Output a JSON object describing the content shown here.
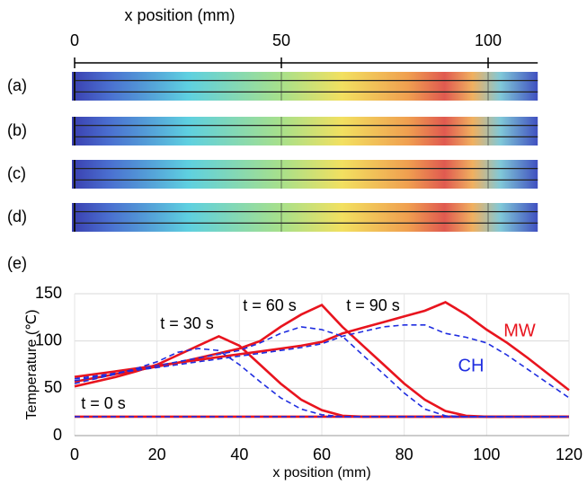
{
  "chart_data": [
    {
      "type": "strips",
      "xlabel": "x position (mm)",
      "xlim": [
        0,
        112
      ],
      "xticks": [
        0,
        50,
        100
      ],
      "panels": [
        "(a)",
        "(b)",
        "(c)",
        "(d)"
      ]
    },
    {
      "type": "line",
      "panel": "(e)",
      "xlabel": "x position  (mm)",
      "ylabel": "Temperature (℃)",
      "xlim": [
        0,
        120
      ],
      "xticks": [
        0,
        20,
        40,
        60,
        80,
        100,
        120
      ],
      "ylim": [
        0,
        150
      ],
      "yticks": [
        0,
        50,
        100,
        150
      ],
      "grid": true,
      "times": [
        "t = 0 s",
        "t = 30 s",
        "t = 60 s",
        "t = 90 s"
      ],
      "x": [
        0,
        5,
        10,
        15,
        20,
        25,
        30,
        35,
        40,
        45,
        50,
        55,
        60,
        65,
        70,
        75,
        80,
        85,
        90,
        95,
        100,
        105,
        110,
        115,
        120
      ],
      "series": [
        {
          "name": "MW",
          "color": "#e8141e",
          "dashed": false,
          "curves": [
            [
              20,
              20,
              20,
              20,
              20,
              20,
              20,
              20,
              20,
              20,
              20,
              20,
              20,
              20,
              20,
              20,
              20,
              20,
              20,
              20,
              20,
              20,
              20,
              20,
              20
            ],
            [
              52,
              57,
              62,
              68,
              75,
              85,
              95,
              105,
              95,
              75,
              55,
              38,
              27,
              21,
              20,
              20,
              20,
              20,
              20,
              20,
              20,
              20,
              20,
              20,
              20
            ],
            [
              57,
              61,
              65,
              69,
              73,
              77,
              82,
              87,
              92,
              100,
              115,
              128,
              138,
              115,
              95,
              75,
              55,
              38,
              26,
              21,
              20,
              20,
              20,
              20,
              20
            ],
            [
              62,
              65,
              68,
              71,
              74,
              77,
              80,
              83,
              86,
              89,
              92,
              95,
              99,
              108,
              114,
              120,
              126,
              132,
              141,
              128,
              112,
              98,
              82,
              65,
              48
            ]
          ]
        },
        {
          "name": "CH",
          "color": "#1f2de0",
          "dashed": true,
          "curves": [
            [
              20,
              20,
              20,
              20,
              20,
              20,
              20,
              20,
              20,
              20,
              20,
              20,
              20,
              20,
              20,
              20,
              20,
              20,
              20,
              20,
              20,
              20,
              20,
              20,
              20
            ],
            [
              55,
              60,
              65,
              71,
              78,
              88,
              92,
              90,
              75,
              57,
              40,
              28,
              22,
              20,
              20,
              20,
              20,
              20,
              20,
              20,
              20,
              20,
              20,
              20,
              20
            ],
            [
              58,
              62,
              66,
              70,
              74,
              78,
              82,
              86,
              90,
              98,
              108,
              115,
              112,
              105,
              85,
              65,
              45,
              28,
              21,
              20,
              20,
              20,
              20,
              20,
              20
            ],
            [
              60,
              63,
              66,
              69,
              72,
              75,
              78,
              81,
              84,
              87,
              90,
              93,
              97,
              105,
              110,
              115,
              117,
              117,
              108,
              104,
              98,
              85,
              70,
              55,
              40
            ]
          ]
        }
      ]
    }
  ]
}
